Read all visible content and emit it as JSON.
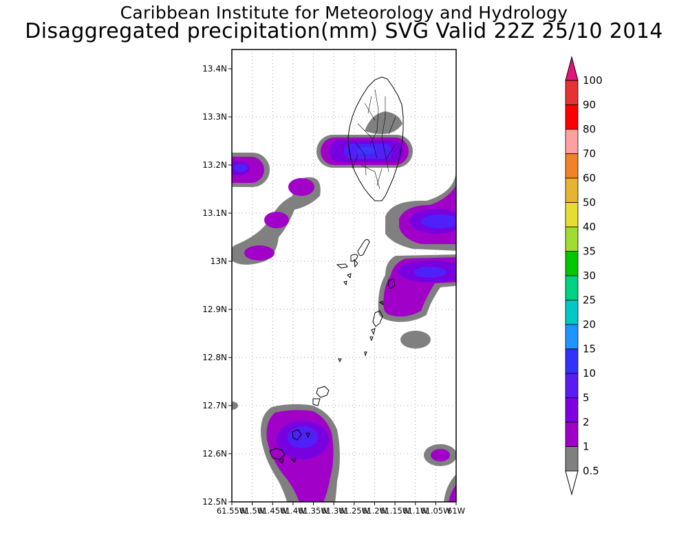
{
  "header": {
    "title": "Caribbean Institute for Meteorology and Hydrology",
    "subtitle": "Disaggregated precipitation(mm) SVG Valid 22Z 25/10 2014"
  },
  "map": {
    "lat_range": [
      12.5,
      13.44
    ],
    "lon_range": [
      -61.55,
      -61.0
    ],
    "lat_ticks": [
      "13.4N",
      "13.3N",
      "13.2N",
      "13.1N",
      "13N",
      "12.9N",
      "12.8N",
      "12.7N",
      "12.6N",
      "12.5N"
    ],
    "lon_ticks": [
      "61.55W",
      "61.5W",
      "61.45W",
      "61.4W",
      "61.35W",
      "61.3W",
      "61.25W",
      "61.2W",
      "61.15W",
      "61.1W",
      "61.05W",
      "61W"
    ],
    "grid": true
  },
  "colorbar": {
    "unit": "mm",
    "levels": [
      {
        "label": "0.5",
        "color": "#808080"
      },
      {
        "label": "1",
        "color": "#9e00c8"
      },
      {
        "label": "2",
        "color": "#7e00e0"
      },
      {
        "label": "5",
        "color": "#5a1cf0"
      },
      {
        "label": "10",
        "color": "#3232ff"
      },
      {
        "label": "15",
        "color": "#1e96ff"
      },
      {
        "label": "20",
        "color": "#00c8c8"
      },
      {
        "label": "25",
        "color": "#00d282"
      },
      {
        "label": "30",
        "color": "#00c800"
      },
      {
        "label": "35",
        "color": "#a0dc32"
      },
      {
        "label": "40",
        "color": "#e6dc32"
      },
      {
        "label": "50",
        "color": "#e6b432"
      },
      {
        "label": "60",
        "color": "#f08228"
      },
      {
        "label": "70",
        "color": "#ffa0a0"
      },
      {
        "label": "80",
        "color": "#ff0000"
      },
      {
        "label": "90",
        "color": "#e63232"
      },
      {
        "label": "100",
        "color": "#e6147a"
      }
    ]
  }
}
